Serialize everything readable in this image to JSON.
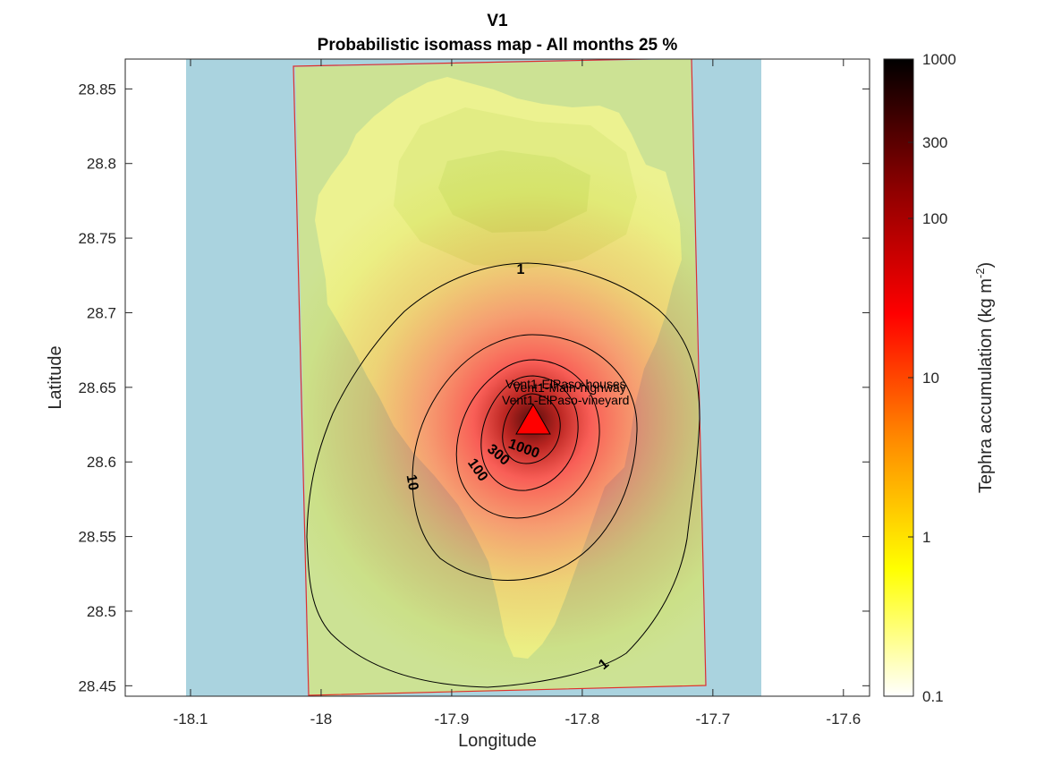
{
  "figure": {
    "title": "V1",
    "subtitle": "Probabilistic isomass map - All months 25 %",
    "xlabel": "Longitude",
    "ylabel": "Latitude"
  },
  "chart_data": {
    "type": "heatmap",
    "title": "V1",
    "subtitle": "Probabilistic isomass map - All months 25 %",
    "xlabel": "Longitude",
    "ylabel": "Latitude",
    "xlim": [
      -18.15,
      -17.58
    ],
    "ylim": [
      28.443,
      28.87
    ],
    "xticks": [
      -18.1,
      -18,
      -17.9,
      -17.8,
      -17.7,
      -17.6
    ],
    "xtick_labels": [
      "-18.1",
      "-18",
      "-17.9",
      "-17.8",
      "-17.7",
      "-17.6"
    ],
    "yticks": [
      28.45,
      28.5,
      28.55,
      28.6,
      28.65,
      28.7,
      28.75,
      28.8,
      28.85
    ],
    "ytick_labels": [
      "28.45",
      "28.5",
      "28.55",
      "28.6",
      "28.65",
      "28.7",
      "28.75",
      "28.8",
      "28.85"
    ],
    "vent": {
      "lon": -17.84,
      "lat": 28.628
    },
    "sites": [
      {
        "label": "Vent1-ElPaso-houses",
        "lon": -17.853,
        "lat": 28.6444
      },
      {
        "label": "Vent1-Main-highway",
        "lon": -17.848,
        "lat": 28.6419
      },
      {
        "label": "Vent1-ElPaso-vineyard",
        "lon": -17.858,
        "lat": 28.6361
      }
    ],
    "contours": [
      {
        "level": 1,
        "label": "1",
        "label_at": [
          [
            -17.987,
            28.729
          ],
          [
            -17.795,
            28.47
          ]
        ]
      },
      {
        "level": 10,
        "label": "10",
        "label_at": [
          [
            -17.885,
            28.588
          ]
        ]
      },
      {
        "level": 100,
        "label": "100",
        "label_at": [
          [
            -17.865,
            28.597
          ]
        ]
      },
      {
        "level": 300,
        "label": "300",
        "label_at": [
          [
            -17.855,
            28.604
          ]
        ]
      },
      {
        "level": 1000,
        "label": "1000",
        "label_at": [
          [
            -17.85,
            28.612
          ]
        ]
      }
    ],
    "colorbar": {
      "label": "Tephra accumulation (kg m",
      "label_sup": "-2",
      "label_end": ")",
      "scale": "log",
      "range": [
        0.1,
        1000
      ],
      "ticks": [
        0.1,
        1,
        10,
        100,
        300,
        1000
      ],
      "tick_labels": [
        "0.1",
        "1",
        "10",
        "100",
        "300",
        "1000"
      ],
      "colormap": [
        "#ffffff",
        "#ffff00",
        "#ff8c00",
        "#ff0000",
        "#8b0000",
        "#000000"
      ]
    },
    "grid": false
  },
  "colors": {
    "sea": "#aad3df",
    "land": "#eaf1d7",
    "domain_outline": "#e0302a",
    "vent": "#ff0000"
  }
}
